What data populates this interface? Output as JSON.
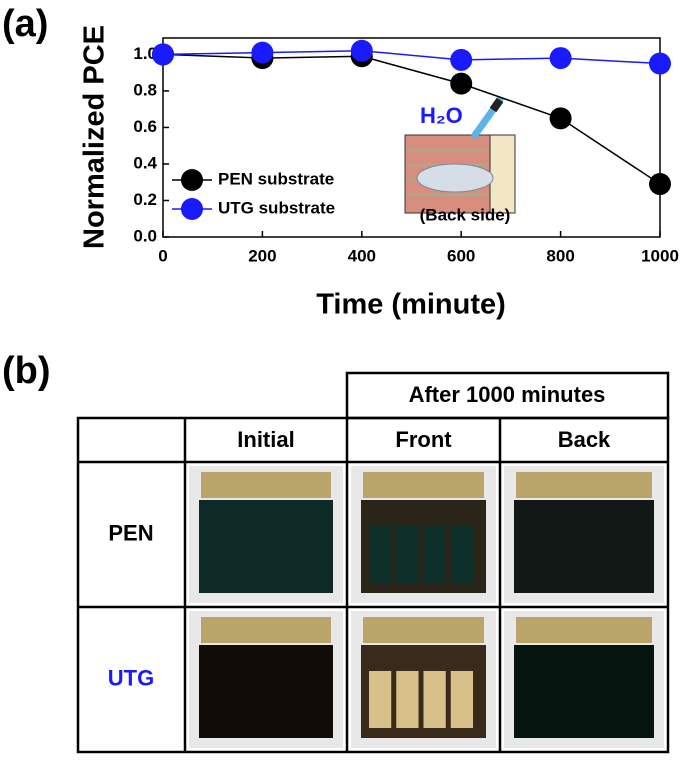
{
  "panel_a_label": "(a)",
  "chart_data": {
    "type": "line",
    "ylabel": "Normalized PCE",
    "xlabel": "Time (minute)",
    "x": [
      0,
      200,
      400,
      600,
      800,
      1000
    ],
    "series": [
      {
        "name": "PEN substrate",
        "color": "#000000",
        "values": [
          1.0,
          0.98,
          0.99,
          0.84,
          0.65,
          0.29
        ]
      },
      {
        "name": "UTG substrate",
        "color": "#1a1aff",
        "values": [
          1.0,
          1.01,
          1.02,
          0.97,
          0.98,
          0.95
        ]
      }
    ],
    "xlim": [
      0,
      1000
    ],
    "xticks": [
      0,
      200,
      400,
      600,
      800,
      1000
    ],
    "ylim": [
      0,
      1.09
    ],
    "yticks": [
      {
        "value": 0,
        "label": "0.0"
      },
      0.2,
      0.4,
      0.6,
      0.8,
      {
        "value": 1,
        "label": "1.0"
      }
    ],
    "legend": "lower-left",
    "inset": {
      "label": "H₂O",
      "caption": "(Back side)"
    }
  },
  "panel_b_label": "(b)",
  "table": {
    "group_header": "After 1000 minutes",
    "columns": [
      "Initial",
      "Front",
      "Back"
    ],
    "rows": [
      "PEN",
      "UTG"
    ]
  }
}
